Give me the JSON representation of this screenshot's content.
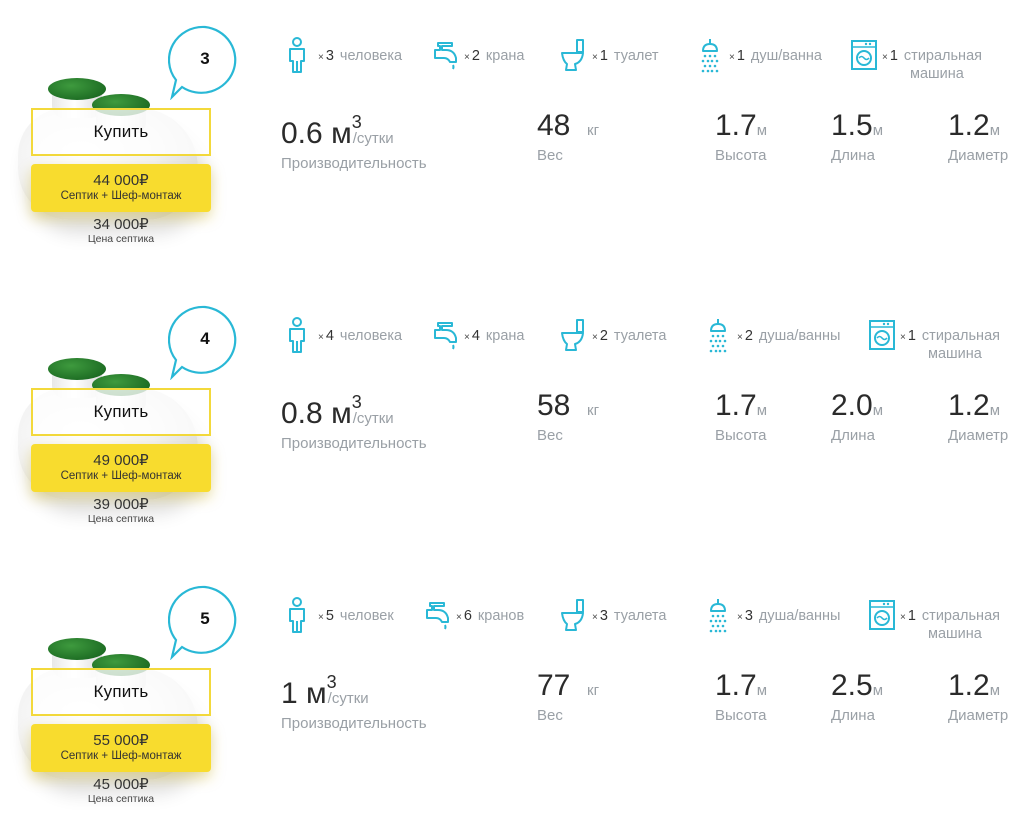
{
  "rows": [
    {
      "number": "3",
      "buy_label": "Купить",
      "total_price": "44 000₽",
      "total_label": "Септик + Шеф-монтаж",
      "septic_price": "34 000₽",
      "septic_label": "Цена септика",
      "features": {
        "people": {
          "count": "3",
          "label": "человека"
        },
        "taps": {
          "count": "2",
          "label": "крана"
        },
        "toilets": {
          "count": "1",
          "label": "туалет"
        },
        "showers": {
          "count": "1",
          "label": "душ/ванна"
        },
        "washers": {
          "count": "1",
          "label1": "стиральная",
          "label2": "машина"
        }
      },
      "specs": {
        "capacity": {
          "value": "0.6",
          "unit": "м",
          "sup": "3",
          "suffix": "/сутки",
          "label": "Производительность"
        },
        "weight": {
          "value": "48",
          "unit": "кг",
          "label": "Вес"
        },
        "height": {
          "value": "1.7",
          "unit": "м",
          "label": "Высота"
        },
        "length": {
          "value": "1.5",
          "unit": "м",
          "label": "Длина"
        },
        "diameter": {
          "value": "1.2",
          "unit": "м",
          "label": "Диаметр"
        }
      }
    },
    {
      "number": "4",
      "buy_label": "Купить",
      "total_price": "49 000₽",
      "total_label": "Септик + Шеф-монтаж",
      "septic_price": "39 000₽",
      "septic_label": "Цена септика",
      "features": {
        "people": {
          "count": "4",
          "label": "человека"
        },
        "taps": {
          "count": "4",
          "label": "крана"
        },
        "toilets": {
          "count": "2",
          "label": "туалета"
        },
        "showers": {
          "count": "2",
          "label": "душа/ванны"
        },
        "washers": {
          "count": "1",
          "label1": "стиральная",
          "label2": "машина"
        }
      },
      "specs": {
        "capacity": {
          "value": "0.8",
          "unit": "м",
          "sup": "3",
          "suffix": "/сутки",
          "label": "Производительность"
        },
        "weight": {
          "value": "58",
          "unit": "кг",
          "label": "Вес"
        },
        "height": {
          "value": "1.7",
          "unit": "м",
          "label": "Высота"
        },
        "length": {
          "value": "2.0",
          "unit": "м",
          "label": "Длина"
        },
        "diameter": {
          "value": "1.2",
          "unit": "м",
          "label": "Диаметр"
        }
      }
    },
    {
      "number": "5",
      "buy_label": "Купить",
      "total_price": "55 000₽",
      "total_label": "Септик + Шеф-монтаж",
      "septic_price": "45 000₽",
      "septic_label": "Цена септика",
      "features": {
        "people": {
          "count": "5",
          "label": "человек"
        },
        "taps": {
          "count": "6",
          "label": "кранов"
        },
        "toilets": {
          "count": "3",
          "label": "туалета"
        },
        "showers": {
          "count": "3",
          "label": "душа/ванны"
        },
        "washers": {
          "count": "1",
          "label1": "стиральная",
          "label2": "машина"
        }
      },
      "specs": {
        "capacity": {
          "value": "1",
          "unit": "м",
          "sup": "3",
          "suffix": "/сутки",
          "label": "Производительность"
        },
        "weight": {
          "value": "77",
          "unit": "кг",
          "label": "Вес"
        },
        "height": {
          "value": "1.7",
          "unit": "м",
          "label": "Высота"
        },
        "length": {
          "value": "2.5",
          "unit": "м",
          "label": "Длина"
        },
        "diameter": {
          "value": "1.2",
          "unit": "м",
          "label": "Диаметр"
        }
      }
    }
  ],
  "icons": {
    "people": "person-icon",
    "taps": "faucet-icon",
    "toilets": "toilet-icon",
    "showers": "shower-icon",
    "washers": "washing-machine-icon"
  },
  "colors": {
    "accent": "#29b8d6",
    "yellow": "#f8dc2e",
    "lid_green": "#1f6f25",
    "muted": "#9aa0a6"
  },
  "multiplier": "×"
}
